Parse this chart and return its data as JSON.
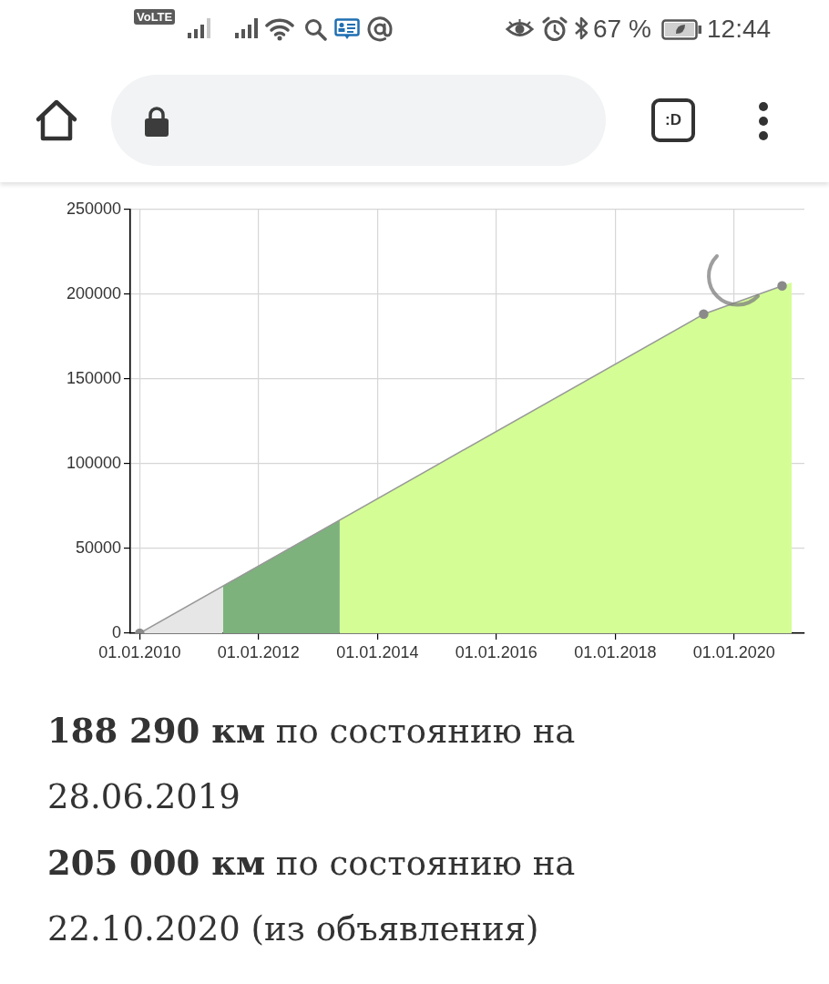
{
  "chart_data": {
    "type": "area",
    "xlim": [
      "2009-11-04",
      "2021-03-08"
    ],
    "xticks": [
      {
        "value": "2010-01-01",
        "label": "01.01.2010"
      },
      {
        "value": "2012-01-01",
        "label": "01.01.2012"
      },
      {
        "value": "2014-01-01",
        "label": "01.01.2014"
      },
      {
        "value": "2016-01-01",
        "label": "01.01.2016"
      },
      {
        "value": "2018-01-01",
        "label": "01.01.2018"
      },
      {
        "value": "2020-01-01",
        "label": "01.01.2020"
      }
    ],
    "ylim": [
      0,
      250000
    ],
    "yticks": [
      0,
      50000,
      100000,
      150000,
      200000,
      250000
    ],
    "grid": true,
    "series": [
      {
        "x": [
          "2010-01-01",
          "2011-05-26"
        ],
        "values": [
          0,
          28000
        ],
        "color": "#e6e6e6"
      },
      {
        "x": [
          "2011-05-26",
          "2013-05-14"
        ],
        "values": [
          28000,
          67000
        ],
        "color": "#7db27d"
      },
      {
        "x": [
          "2013-05-14",
          "2019-06-28",
          "2020-10-22",
          "2020-12-20"
        ],
        "values": [
          67000,
          188290,
          205000,
          207000
        ],
        "color": "#d4fd96"
      },
      {
        "type": "line",
        "x": [
          "2010-01-01",
          "2019-06-28",
          "2020-10-22"
        ],
        "values": [
          0,
          188290,
          205000
        ],
        "color": "#999999",
        "marker": "circle"
      }
    ],
    "annotations": [
      "VoLTE",
      "67 %",
      "12:44",
      ":D",
      "188 290 км",
      "по состоянию на 28.06.2019",
      "205 000 км",
      "по состоянию на 22.10.2020 (из объявления)"
    ]
  }
}
